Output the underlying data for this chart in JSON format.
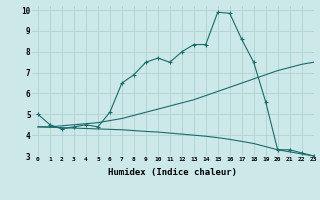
{
  "xlabel": "Humidex (Indice chaleur)",
  "bg_color": "#cce8e8",
  "grid_color": "#aacece",
  "line_color": "#1a6b6b",
  "xlim": [
    -0.5,
    23
  ],
  "ylim": [
    3,
    10.2
  ],
  "xticks": [
    0,
    1,
    2,
    3,
    4,
    5,
    6,
    7,
    8,
    9,
    10,
    11,
    12,
    13,
    14,
    15,
    16,
    17,
    18,
    19,
    20,
    21,
    22,
    23
  ],
  "yticks": [
    3,
    4,
    5,
    6,
    7,
    8,
    9,
    10
  ],
  "line1_x": [
    0,
    1,
    2,
    3,
    4,
    5,
    6,
    7,
    8,
    9,
    10,
    11,
    12,
    13,
    14,
    15,
    16,
    17,
    18,
    19,
    20,
    21,
    22,
    23
  ],
  "line1_y": [
    5.0,
    4.5,
    4.3,
    4.4,
    4.5,
    4.4,
    5.1,
    6.5,
    6.9,
    7.5,
    7.7,
    7.5,
    8.0,
    8.35,
    8.35,
    9.9,
    9.85,
    8.6,
    7.5,
    5.6,
    3.3,
    3.3,
    3.15,
    3.0
  ],
  "line2_x": [
    0,
    1,
    2,
    3,
    4,
    5,
    6,
    7,
    8,
    9,
    10,
    11,
    12,
    13,
    14,
    15,
    16,
    17,
    18,
    19,
    20,
    21,
    22,
    23
  ],
  "line2_y": [
    4.4,
    4.4,
    4.45,
    4.5,
    4.55,
    4.6,
    4.7,
    4.8,
    4.95,
    5.1,
    5.25,
    5.4,
    5.55,
    5.7,
    5.9,
    6.1,
    6.3,
    6.5,
    6.7,
    6.9,
    7.1,
    7.25,
    7.4,
    7.5
  ],
  "line3_x": [
    0,
    1,
    2,
    3,
    4,
    5,
    6,
    7,
    8,
    9,
    10,
    11,
    12,
    13,
    14,
    15,
    16,
    17,
    18,
    19,
    20,
    21,
    22,
    23
  ],
  "line3_y": [
    4.4,
    4.38,
    4.36,
    4.34,
    4.32,
    4.3,
    4.28,
    4.26,
    4.22,
    4.18,
    4.15,
    4.1,
    4.05,
    4.0,
    3.95,
    3.88,
    3.8,
    3.7,
    3.6,
    3.45,
    3.3,
    3.2,
    3.1,
    3.0
  ]
}
